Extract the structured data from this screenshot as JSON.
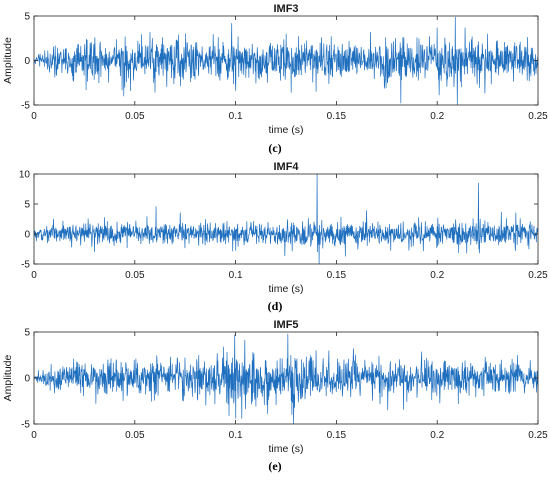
{
  "chart_data": [
    {
      "type": "line",
      "title": "IMF3",
      "xlabel": "time (s)",
      "ylabel": "Amplitude",
      "xlim": [
        0,
        0.25
      ],
      "ylim": [
        -5,
        5
      ],
      "xticks": [
        0,
        0.05,
        0.1,
        0.15,
        0.2,
        0.25
      ],
      "xtick_labels": [
        "0",
        "0.05",
        "0.1",
        "0.15",
        "0.2",
        "0.25"
      ],
      "yticks": [
        -5,
        0,
        5
      ],
      "ytick_labels": [
        "-5",
        "0",
        "5"
      ],
      "grid": false,
      "panel_label": "(c)",
      "series": [
        {
          "color": "#1f6fbf",
          "envelope": {
            "x": [
              0,
              0.005,
              0.01,
              0.02,
              0.03,
              0.04,
              0.05,
              0.06,
              0.07,
              0.08,
              0.09,
              0.1,
              0.11,
              0.12,
              0.13,
              0.14,
              0.15,
              0.16,
              0.17,
              0.18,
              0.19,
              0.2,
              0.21,
              0.22,
              0.23,
              0.24,
              0.25
            ],
            "y": [
              0.3,
              0.8,
              1.5,
              1.8,
              1.9,
              2.0,
              2.2,
              2.0,
              2.1,
              2.0,
              2.2,
              2.4,
              2.0,
              2.1,
              2.2,
              2.3,
              2.0,
              2.2,
              2.1,
              2.4,
              2.0,
              2.2,
              2.3,
              2.1,
              2.0,
              1.9,
              1.7
            ]
          },
          "peaks": [
            {
              "x": 0.0575,
              "y": 3.2
            },
            {
              "x": 0.06,
              "y": -3.6
            },
            {
              "x": 0.098,
              "y": 4.2
            },
            {
              "x": 0.1,
              "y": -3.4
            },
            {
              "x": 0.125,
              "y": 3.0
            },
            {
              "x": 0.14,
              "y": -3.5
            },
            {
              "x": 0.167,
              "y": 3.2
            },
            {
              "x": 0.182,
              "y": -4.8
            },
            {
              "x": 0.2,
              "y": 3.7
            },
            {
              "x": 0.209,
              "y": 4.9
            },
            {
              "x": 0.212,
              "y": -3.0
            },
            {
              "x": 0.225,
              "y": 3.0
            }
          ]
        }
      ]
    },
    {
      "type": "line",
      "title": "IMF4",
      "xlabel": "time (s)",
      "ylabel": "",
      "xlim": [
        0,
        0.25
      ],
      "ylim": [
        -5,
        10
      ],
      "xticks": [
        0,
        0.05,
        0.1,
        0.15,
        0.2,
        0.25
      ],
      "xtick_labels": [
        "0",
        "0.05",
        "0.1",
        "0.15",
        "0.2",
        "0.25"
      ],
      "yticks": [
        -5,
        0,
        5,
        10
      ],
      "ytick_labels": [
        "-5",
        "0",
        "5",
        "10"
      ],
      "grid": false,
      "panel_label": "(d)",
      "series": [
        {
          "color": "#1f6fbf",
          "envelope": {
            "x": [
              0,
              0.005,
              0.01,
              0.02,
              0.04,
              0.06,
              0.08,
              0.1,
              0.12,
              0.14,
              0.16,
              0.18,
              0.2,
              0.22,
              0.24,
              0.25
            ],
            "y": [
              0.5,
              1.0,
              1.5,
              1.6,
              1.7,
              1.8,
              1.7,
              1.9,
              1.8,
              1.9,
              1.8,
              1.7,
              1.8,
              1.9,
              1.8,
              1.6
            ]
          },
          "peaks": [
            {
              "x": 0.0605,
              "y": 4.6
            },
            {
              "x": 0.1405,
              "y": 10.0
            },
            {
              "x": 0.1415,
              "y": -5.0
            },
            {
              "x": 0.2205,
              "y": 8.5
            },
            {
              "x": 0.221,
              "y": -3.2
            },
            {
              "x": 0.03,
              "y": -3.0
            },
            {
              "x": 0.1,
              "y": -2.8
            },
            {
              "x": 0.177,
              "y": -2.8
            }
          ]
        }
      ]
    },
    {
      "type": "line",
      "title": "IMF5",
      "xlabel": "time (s)",
      "ylabel": "Amplitude",
      "xlim": [
        0,
        0.25
      ],
      "ylim": [
        -5,
        5
      ],
      "xticks": [
        0,
        0.05,
        0.1,
        0.15,
        0.2,
        0.25
      ],
      "xtick_labels": [
        "0",
        "0.05",
        "0.1",
        "0.15",
        "0.2",
        "0.25"
      ],
      "yticks": [
        -5,
        0,
        5
      ],
      "ytick_labels": [
        "-5",
        "0",
        "5"
      ],
      "grid": false,
      "panel_label": "(e)",
      "series": [
        {
          "color": "#1f6fbf",
          "envelope": {
            "x": [
              0,
              0.005,
              0.01,
              0.02,
              0.04,
              0.06,
              0.08,
              0.09,
              0.1,
              0.11,
              0.12,
              0.13,
              0.14,
              0.16,
              0.18,
              0.2,
              0.22,
              0.24,
              0.25
            ],
            "y": [
              0.4,
              0.9,
              1.3,
              1.5,
              1.6,
              1.7,
              2.0,
              2.6,
              2.9,
              2.7,
              2.6,
              2.4,
              2.1,
              1.8,
              1.6,
              1.7,
              1.6,
              1.4,
              1.3
            ]
          },
          "peaks": [
            {
              "x": 0.0995,
              "y": 4.7
            },
            {
              "x": 0.1,
              "y": -4.4
            },
            {
              "x": 0.094,
              "y": 3.4
            },
            {
              "x": 0.126,
              "y": 4.8
            },
            {
              "x": 0.128,
              "y": -4.0
            },
            {
              "x": 0.11,
              "y": -3.1
            },
            {
              "x": 0.14,
              "y": 3.0
            },
            {
              "x": 0.185,
              "y": -2.6
            }
          ]
        }
      ]
    }
  ]
}
